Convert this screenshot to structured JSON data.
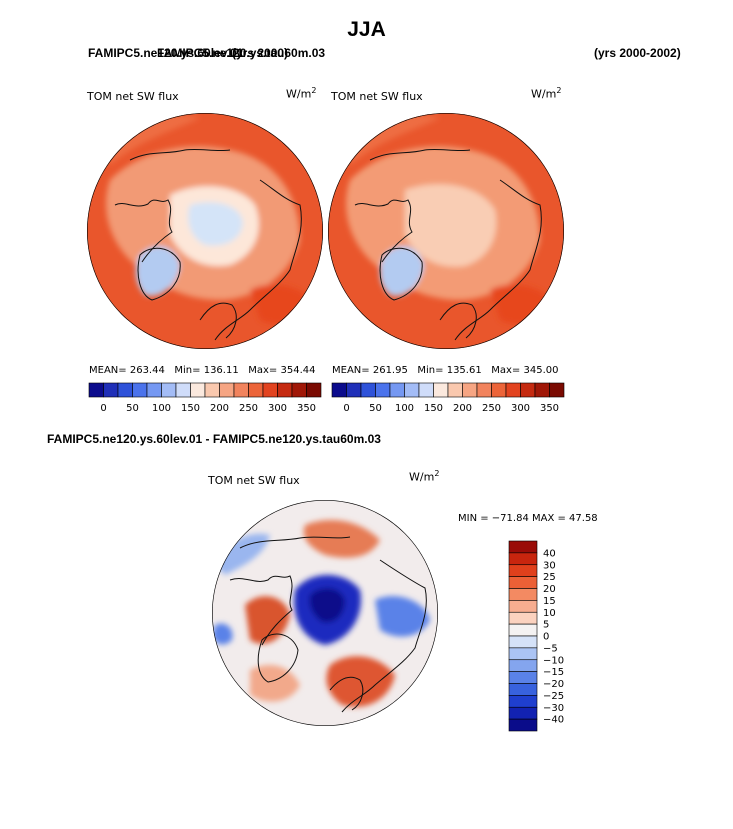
{
  "title": "JJA",
  "header": {
    "case_left_a": "FAMIPC5.ne120.ys.60lev.01",
    "case_left_b": "FAMIPC5.ne120.ys.tau60m.03",
    "case_left_c": "(yrs 2000)",
    "years_right": "(yrs 2000-2002)"
  },
  "difference_title": "FAMIPC5.ne120.ys.60lev.01 - FAMIPC5.ne120.ys.tau60m.03",
  "colors": {
    "ocean_base": "#e8502a",
    "continent_pale": "#f7b99d",
    "ice_blue": "#b9d2f4",
    "coast": "#111111"
  },
  "chart_data": [
    {
      "type": "heatmap",
      "title": "TOM net SW flux",
      "unit_base": "W/m",
      "unit_exp": "2",
      "projection": "north-polar-stereographic",
      "stats": {
        "mean_label": "MEAN=",
        "mean": "263.44",
        "min_label": "Min=",
        "min": "136.11",
        "max_label": "Max=",
        "max": "354.44"
      },
      "colorbar": {
        "orientation": "horizontal",
        "ticks": [
          "0",
          "50",
          "100",
          "150",
          "200",
          "250",
          "300",
          "350"
        ],
        "colors": [
          "#0b0b8c",
          "#1f2fb8",
          "#2e52d9",
          "#4b73ec",
          "#7598f2",
          "#a3bcf6",
          "#cfdcf9",
          "#fbe9de",
          "#f9c8ae",
          "#f6a583",
          "#f1835d",
          "#ec6439",
          "#e2431f",
          "#c52a10",
          "#a01707",
          "#7a0a02"
        ]
      }
    },
    {
      "type": "heatmap",
      "title": "TOM net SW flux",
      "unit_base": "W/m",
      "unit_exp": "2",
      "projection": "north-polar-stereographic",
      "stats": {
        "mean_label": "MEAN=",
        "mean": "261.95",
        "min_label": "Min=",
        "min": "135.61",
        "max_label": "Max=",
        "max": "345.00"
      },
      "colorbar": {
        "orientation": "horizontal",
        "ticks": [
          "0",
          "50",
          "100",
          "150",
          "200",
          "250",
          "300",
          "350"
        ],
        "colors": [
          "#0b0b8c",
          "#1f2fb8",
          "#2e52d9",
          "#4b73ec",
          "#7598f2",
          "#a3bcf6",
          "#cfdcf9",
          "#fbe9de",
          "#f9c8ae",
          "#f6a583",
          "#f1835d",
          "#ec6439",
          "#e2431f",
          "#c52a10",
          "#a01707",
          "#7a0a02"
        ]
      }
    },
    {
      "type": "heatmap",
      "title": "TOM net SW flux",
      "unit_base": "W/m",
      "unit_exp": "2",
      "projection": "north-polar-stereographic",
      "stats_line": "MIN = −71.84 MAX =  47.58",
      "colorbar": {
        "orientation": "vertical",
        "ticks": [
          "40",
          "30",
          "25",
          "20",
          "15",
          "10",
          "5",
          "0",
          "−5",
          "−10",
          "−15",
          "−20",
          "−25",
          "−30",
          "−40"
        ],
        "colors": [
          "#9a0c08",
          "#c8250e",
          "#e0401c",
          "#ec6036",
          "#f38a62",
          "#f7ad90",
          "#fbd2bf",
          "#f4f2f2",
          "#d5e2f8",
          "#abc4f4",
          "#84a5ee",
          "#5a82e8",
          "#3862de",
          "#1f3fcf",
          "#1222b2",
          "#0a0c8a"
        ]
      }
    }
  ]
}
